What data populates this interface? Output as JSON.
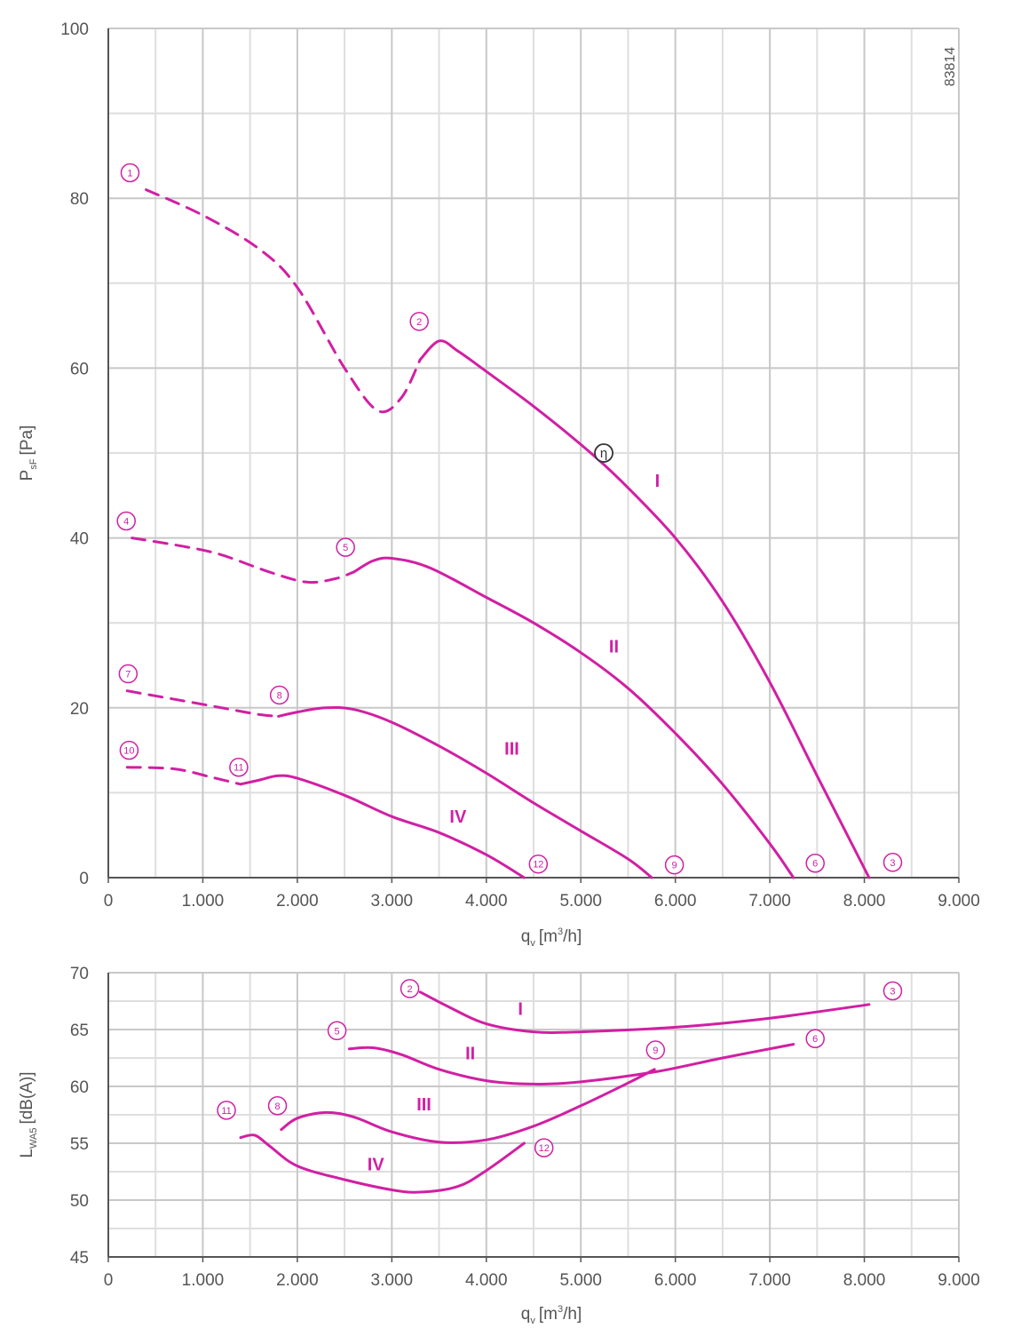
{
  "colors": {
    "curve": "#d11fa3",
    "grid_major": "#c8c8c8",
    "grid_minor": "#dedede",
    "axis": "#555555",
    "eta_marker": "#333333"
  },
  "document_id": "83814",
  "chart_data": [
    {
      "type": "line",
      "ylabel": "P",
      "ylabel_sub": "sF",
      "ylabel_unit": "[Pa]",
      "xlabel": "q",
      "xlabel_sub": "v",
      "xlabel_unit_pre": "[m",
      "xlabel_unit_sup": "3",
      "xlabel_unit_post": "/h]",
      "xlim": [
        0,
        9000
      ],
      "ylim": [
        0,
        100
      ],
      "xticks": [
        0,
        1000,
        2000,
        3000,
        4000,
        5000,
        6000,
        7000,
        8000,
        9000
      ],
      "xtick_labels": [
        "0",
        "1.000",
        "2.000",
        "3.000",
        "4.000",
        "5.000",
        "6.000",
        "7.000",
        "8.000",
        "9.000"
      ],
      "yticks": [
        0,
        20,
        40,
        60,
        80,
        100
      ],
      "ytick_labels": [
        "0",
        "20",
        "40",
        "60",
        "80",
        "100"
      ],
      "grid": true,
      "series": [
        {
          "name": "I",
          "dashed": [
            [
              400,
              81
            ],
            [
              1000,
              78
            ],
            [
              1600,
              74
            ],
            [
              2000,
              69.5
            ],
            [
              2500,
              60
            ],
            [
              2850,
              55
            ],
            [
              3100,
              56.5
            ],
            [
              3300,
              61
            ]
          ],
          "solid": [
            [
              3300,
              61
            ],
            [
              3500,
              63.2
            ],
            [
              3700,
              62
            ],
            [
              4000,
              59.6
            ],
            [
              4500,
              55.5
            ],
            [
              5000,
              51
            ],
            [
              5400,
              47
            ],
            [
              6000,
              40
            ],
            [
              6500,
              32.5
            ],
            [
              7000,
              23
            ],
            [
              7500,
              12
            ],
            [
              8050,
              0
            ]
          ]
        },
        {
          "name": "II",
          "dashed": [
            [
              250,
              40
            ],
            [
              800,
              39
            ],
            [
              1200,
              38
            ],
            [
              1700,
              36
            ],
            [
              2100,
              34.8
            ],
            [
              2400,
              35.2
            ],
            [
              2600,
              36
            ]
          ],
          "solid": [
            [
              2600,
              36
            ],
            [
              2800,
              37.3
            ],
            [
              3000,
              37.6
            ],
            [
              3400,
              36.5
            ],
            [
              4000,
              33
            ],
            [
              4500,
              30
            ],
            [
              5000,
              26.5
            ],
            [
              5500,
              22.3
            ],
            [
              6000,
              17
            ],
            [
              6500,
              11
            ],
            [
              7000,
              4
            ],
            [
              7250,
              0
            ]
          ]
        },
        {
          "name": "III",
          "dashed": [
            [
              200,
              22
            ],
            [
              700,
              21
            ],
            [
              1200,
              20
            ],
            [
              1600,
              19.2
            ],
            [
              1800,
              19
            ]
          ],
          "solid": [
            [
              1800,
              19
            ],
            [
              2000,
              19.5
            ],
            [
              2300,
              20
            ],
            [
              2600,
              19.8
            ],
            [
              3000,
              18.3
            ],
            [
              3500,
              15.5
            ],
            [
              4000,
              12.3
            ],
            [
              4500,
              8.8
            ],
            [
              5000,
              5.5
            ],
            [
              5500,
              2.2
            ],
            [
              5750,
              0
            ]
          ]
        },
        {
          "name": "IV",
          "dashed": [
            [
              200,
              13
            ],
            [
              700,
              12.8
            ],
            [
              1100,
              11.8
            ],
            [
              1400,
              11
            ]
          ],
          "solid": [
            [
              1400,
              11
            ],
            [
              1600,
              11.5
            ],
            [
              1800,
              12
            ],
            [
              2000,
              11.7
            ],
            [
              2500,
              9.7
            ],
            [
              3000,
              7.2
            ],
            [
              3500,
              5.3
            ],
            [
              4000,
              2.7
            ],
            [
              4400,
              0
            ]
          ]
        }
      ],
      "point_markers": [
        {
          "label": "1",
          "x": 230,
          "y": 83
        },
        {
          "label": "2",
          "x": 3290,
          "y": 65.5
        },
        {
          "label": "3",
          "x": 8300,
          "y": 1.8
        },
        {
          "label": "4",
          "x": 190,
          "y": 42
        },
        {
          "label": "5",
          "x": 2510,
          "y": 38.9
        },
        {
          "label": "6",
          "x": 7480,
          "y": 1.7
        },
        {
          "label": "7",
          "x": 210,
          "y": 24
        },
        {
          "label": "8",
          "x": 1810,
          "y": 21.5
        },
        {
          "label": "9",
          "x": 5990,
          "y": 1.5
        },
        {
          "label": "10",
          "x": 220,
          "y": 15
        },
        {
          "label": "11",
          "x": 1380,
          "y": 13
        },
        {
          "label": "12",
          "x": 4550,
          "y": 1.6
        }
      ],
      "curve_labels": [
        {
          "text": "I",
          "x": 5810,
          "y": 46
        },
        {
          "text": "II",
          "x": 5350,
          "y": 26.5
        },
        {
          "text": "III",
          "x": 4270,
          "y": 14.5
        },
        {
          "text": "IV",
          "x": 3700,
          "y": 6.5
        }
      ],
      "eta_marker": {
        "text": "η",
        "x": 5130,
        "y": 50
      }
    },
    {
      "type": "line",
      "ylabel": "L",
      "ylabel_sub": "WA5",
      "ylabel_unit": "[dB(A)]",
      "xlabel": "q",
      "xlabel_sub": "v",
      "xlabel_unit_pre": "[m",
      "xlabel_unit_sup": "3",
      "xlabel_unit_post": "/h]",
      "xlim": [
        0,
        9000
      ],
      "ylim": [
        45,
        70
      ],
      "xticks": [
        0,
        1000,
        2000,
        3000,
        4000,
        5000,
        6000,
        7000,
        8000,
        9000
      ],
      "xtick_labels": [
        "0",
        "1.000",
        "2.000",
        "3.000",
        "4.000",
        "5.000",
        "6.000",
        "7.000",
        "8.000",
        "9.000"
      ],
      "yticks": [
        45,
        50,
        55,
        60,
        65,
        70
      ],
      "ytick_labels": [
        "45",
        "50",
        "55",
        "60",
        "65",
        "70"
      ],
      "grid": true,
      "series": [
        {
          "name": "I",
          "solid": [
            [
              3300,
              68.3
            ],
            [
              3600,
              67
            ],
            [
              4000,
              65.5
            ],
            [
              4500,
              64.8
            ],
            [
              5000,
              64.8
            ],
            [
              6000,
              65.2
            ],
            [
              7000,
              66
            ],
            [
              8050,
              67.2
            ]
          ]
        },
        {
          "name": "II",
          "solid": [
            [
              2550,
              63.3
            ],
            [
              2800,
              63.4
            ],
            [
              3100,
              62.8
            ],
            [
              3500,
              61.5
            ],
            [
              4000,
              60.5
            ],
            [
              4500,
              60.2
            ],
            [
              5000,
              60.4
            ],
            [
              5800,
              61.3
            ],
            [
              6500,
              62.5
            ],
            [
              7250,
              63.7
            ]
          ]
        },
        {
          "name": "III",
          "solid": [
            [
              1830,
              56.2
            ],
            [
              2000,
              57.2
            ],
            [
              2300,
              57.7
            ],
            [
              2600,
              57.3
            ],
            [
              3000,
              56
            ],
            [
              3500,
              55.1
            ],
            [
              4000,
              55.3
            ],
            [
              4500,
              56.5
            ],
            [
              5000,
              58.3
            ],
            [
              5500,
              60.3
            ],
            [
              5780,
              61.5
            ]
          ]
        },
        {
          "name": "IV",
          "solid": [
            [
              1400,
              55.5
            ],
            [
              1550,
              55.7
            ],
            [
              1700,
              54.8
            ],
            [
              2000,
              53
            ],
            [
              2500,
              51.8
            ],
            [
              3000,
              50.9
            ],
            [
              3300,
              50.7
            ],
            [
              3700,
              51.2
            ],
            [
              4000,
              52.6
            ],
            [
              4400,
              55
            ]
          ]
        }
      ],
      "point_markers": [
        {
          "label": "2",
          "x": 3190,
          "y": 68.6
        },
        {
          "label": "3",
          "x": 8300,
          "y": 68.4
        },
        {
          "label": "5",
          "x": 2420,
          "y": 64.9
        },
        {
          "label": "6",
          "x": 7480,
          "y": 64.2
        },
        {
          "label": "8",
          "x": 1790,
          "y": 58.3
        },
        {
          "label": "9",
          "x": 5790,
          "y": 63.2
        },
        {
          "label": "11",
          "x": 1250,
          "y": 57.9
        },
        {
          "label": "12",
          "x": 4610,
          "y": 54.6
        }
      ],
      "curve_labels": [
        {
          "text": "I",
          "x": 4360,
          "y": 66.3
        },
        {
          "text": "II",
          "x": 3830,
          "y": 62.4
        },
        {
          "text": "III",
          "x": 3340,
          "y": 57.9
        },
        {
          "text": "IV",
          "x": 2830,
          "y": 52.6
        }
      ]
    }
  ]
}
